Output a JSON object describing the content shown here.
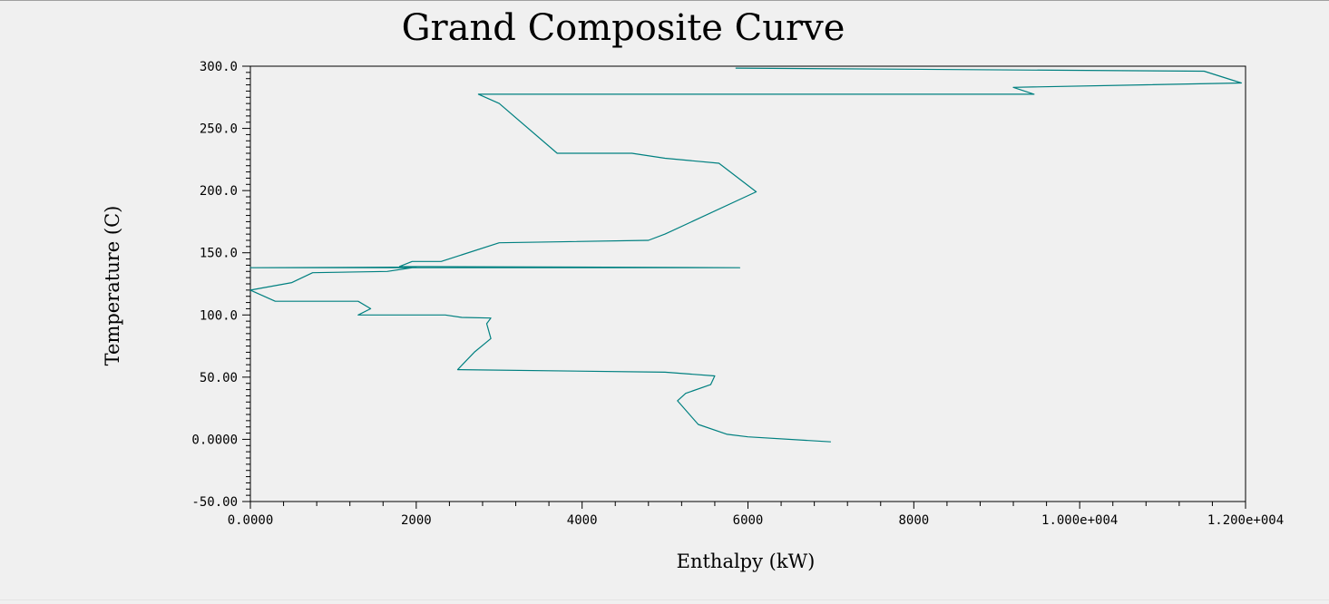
{
  "chart_data": {
    "type": "line",
    "title": "Grand Composite Curve",
    "xlabel": "Enthalpy (kW)",
    "ylabel": "Temperature (C)",
    "xlim": [
      0,
      12000
    ],
    "ylim": [
      -50,
      300
    ],
    "x_ticks": [
      0,
      2000,
      4000,
      6000,
      8000,
      10000,
      12000
    ],
    "x_tick_labels": [
      "0.0000",
      "2000",
      "4000",
      "6000",
      "8000",
      "1.000e+004",
      "1.200e+004"
    ],
    "y_ticks": [
      300,
      250,
      200,
      150,
      100,
      50,
      0,
      -50
    ],
    "y_tick_labels": [
      "300.0",
      "250.0",
      "200.0",
      "150.0",
      "100.0",
      "50.00",
      "0.0000",
      "-50.00"
    ],
    "grid": false,
    "line_color": "#008080",
    "series": [
      {
        "points": [
          [
            5850,
            298.5
          ],
          [
            11500,
            296
          ],
          [
            11950,
            286.5
          ],
          [
            9200,
            283
          ],
          [
            9450,
            277.5
          ],
          [
            2750,
            277.5
          ],
          [
            3000,
            270
          ],
          [
            3700,
            230
          ],
          [
            4600,
            230
          ],
          [
            5000,
            226
          ],
          [
            5650,
            222
          ],
          [
            6100,
            199
          ],
          [
            5000,
            165
          ],
          [
            4800,
            160
          ],
          [
            3000,
            158
          ],
          [
            2300,
            143
          ],
          [
            1950,
            143
          ],
          [
            1800,
            139
          ],
          [
            5900,
            138
          ],
          [
            0,
            138
          ],
          [
            2000,
            138.5
          ],
          [
            1650,
            135
          ],
          [
            750,
            134
          ],
          [
            500,
            126
          ],
          [
            0,
            120
          ],
          [
            300,
            111
          ],
          [
            1300,
            111
          ],
          [
            1450,
            105
          ],
          [
            1300,
            100
          ],
          [
            2350,
            100
          ],
          [
            2550,
            98
          ],
          [
            2900,
            97.5
          ],
          [
            2850,
            93
          ],
          [
            2900,
            81
          ],
          [
            2700,
            70
          ],
          [
            2500,
            56
          ],
          [
            5000,
            54
          ],
          [
            5600,
            51
          ],
          [
            5550,
            44
          ],
          [
            5250,
            37
          ],
          [
            5150,
            31
          ],
          [
            5400,
            12
          ],
          [
            5750,
            4
          ],
          [
            6000,
            2
          ],
          [
            7000,
            -2
          ]
        ]
      }
    ]
  }
}
